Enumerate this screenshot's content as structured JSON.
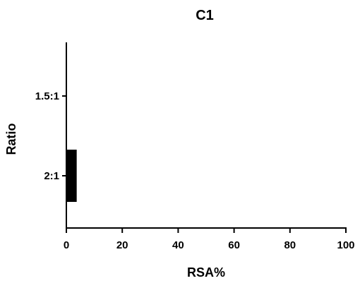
{
  "chart_data": {
    "type": "bar",
    "orientation": "horizontal",
    "title": "C1",
    "xlabel": "RSA%",
    "ylabel": "Ratio",
    "categories": [
      "1.5:1",
      "2:1"
    ],
    "values": [
      0,
      3.7
    ],
    "xlim": [
      0,
      100
    ],
    "xticks": [
      0,
      20,
      40,
      60,
      80,
      100
    ],
    "grid": false,
    "legend": "none",
    "bar_color": "#000000"
  }
}
